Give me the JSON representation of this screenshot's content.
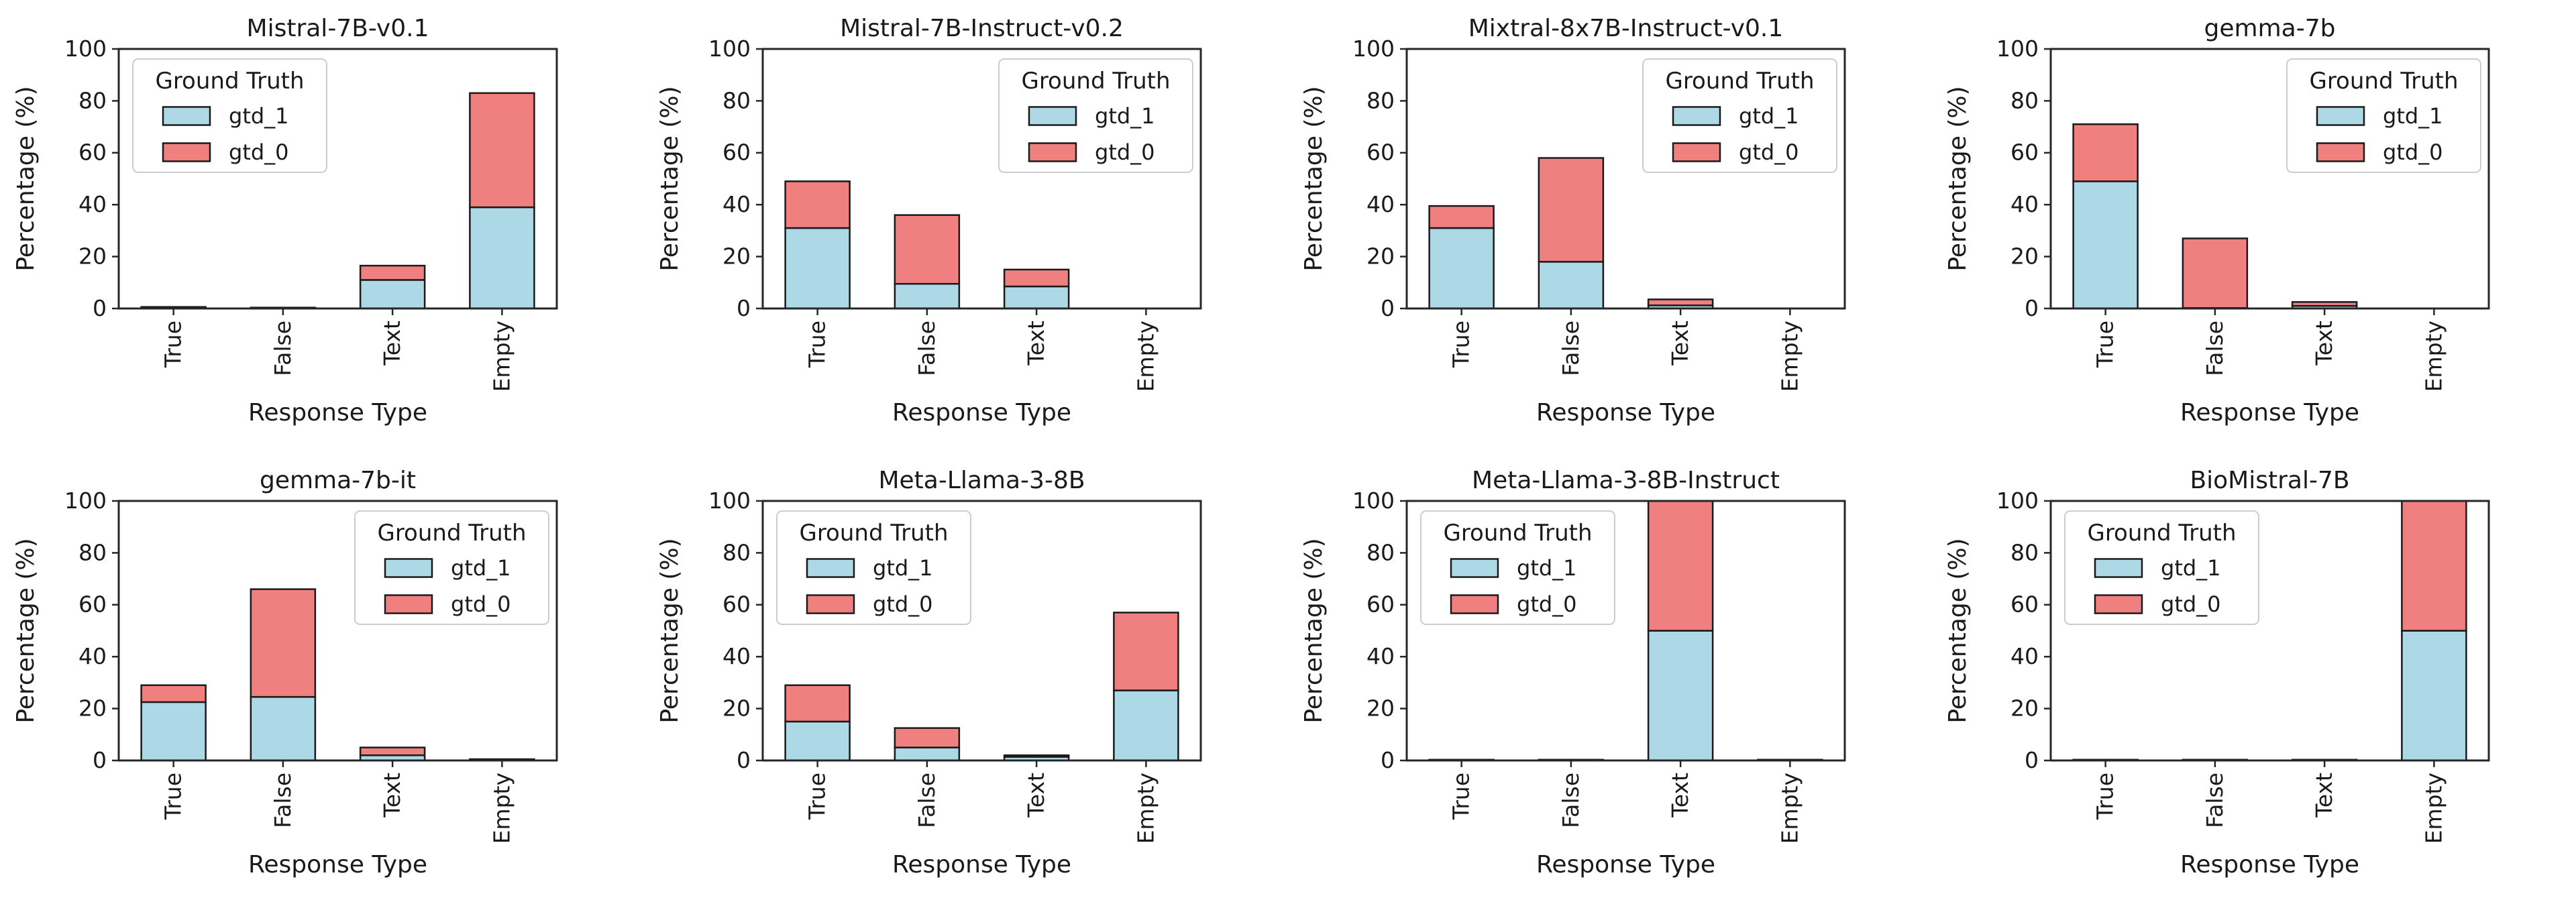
{
  "figure": {
    "background": "#ffffff",
    "ylabel": "Percentage (%)",
    "xlabel": "Response Type",
    "categories": [
      "True",
      "False",
      "Text",
      "Empty"
    ],
    "y_ticks": [
      "0",
      "20",
      "40",
      "60",
      "80",
      "100"
    ],
    "ylim": [
      0,
      100
    ],
    "legend": {
      "title": "Ground Truth",
      "entries": [
        {
          "label": "gtd_1",
          "color": "#ADD8E6"
        },
        {
          "label": "gtd_0",
          "color": "#F08080"
        }
      ]
    },
    "colors": {
      "gtd_1": "#ADD8E6",
      "gtd_0": "#F08080",
      "bar_edge": "#1a1a1a",
      "spine": "#262626",
      "text": "#1a1a1a",
      "legend_border": "#cccccc",
      "legend_bg": "#ffffff"
    }
  },
  "chart_data": [
    {
      "type": "bar",
      "stacked": true,
      "title": "Mistral-7B-v0.1",
      "xlabel": "Response Type",
      "ylabel": "Percentage (%)",
      "ylim": [
        0,
        100
      ],
      "legend_position": "upper-left",
      "categories": [
        "True",
        "False",
        "Text",
        "Empty"
      ],
      "series": [
        {
          "name": "gtd_1",
          "values": [
            0.4,
            0.2,
            11,
            39
          ]
        },
        {
          "name": "gtd_0",
          "values": [
            0.2,
            0.15,
            5.5,
            44
          ]
        }
      ]
    },
    {
      "type": "bar",
      "stacked": true,
      "title": "Mistral-7B-Instruct-v0.2",
      "xlabel": "Response Type",
      "ylabel": "Percentage (%)",
      "ylim": [
        0,
        100
      ],
      "legend_position": "upper-right",
      "categories": [
        "True",
        "False",
        "Text",
        "Empty"
      ],
      "series": [
        {
          "name": "gtd_1",
          "values": [
            31,
            9.5,
            8.5,
            0
          ]
        },
        {
          "name": "gtd_0",
          "values": [
            18,
            26.5,
            6.5,
            0
          ]
        }
      ]
    },
    {
      "type": "bar",
      "stacked": true,
      "title": "Mixtral-8x7B-Instruct-v0.1",
      "xlabel": "Response Type",
      "ylabel": "Percentage (%)",
      "ylim": [
        0,
        100
      ],
      "legend_position": "upper-right",
      "categories": [
        "True",
        "False",
        "Text",
        "Empty"
      ],
      "series": [
        {
          "name": "gtd_1",
          "values": [
            31,
            18,
            1.2,
            0
          ]
        },
        {
          "name": "gtd_0",
          "values": [
            8.5,
            40,
            2.3,
            0
          ]
        }
      ]
    },
    {
      "type": "bar",
      "stacked": true,
      "title": "gemma-7b",
      "xlabel": "Response Type",
      "ylabel": "Percentage (%)",
      "ylim": [
        0,
        100
      ],
      "legend_position": "upper-right",
      "categories": [
        "True",
        "False",
        "Text",
        "Empty"
      ],
      "series": [
        {
          "name": "gtd_1",
          "values": [
            49,
            0.2,
            1,
            0
          ]
        },
        {
          "name": "gtd_0",
          "values": [
            22,
            26.8,
            1.5,
            0
          ]
        }
      ]
    },
    {
      "type": "bar",
      "stacked": true,
      "title": "gemma-7b-it",
      "xlabel": "Response Type",
      "ylabel": "Percentage (%)",
      "ylim": [
        0,
        100
      ],
      "legend_position": "upper-right",
      "categories": [
        "True",
        "False",
        "Text",
        "Empty"
      ],
      "series": [
        {
          "name": "gtd_1",
          "values": [
            22.5,
            24.5,
            2,
            0.3
          ]
        },
        {
          "name": "gtd_0",
          "values": [
            6.5,
            41.5,
            3,
            0.2
          ]
        }
      ]
    },
    {
      "type": "bar",
      "stacked": true,
      "title": "Meta-Llama-3-8B",
      "xlabel": "Response Type",
      "ylabel": "Percentage (%)",
      "ylim": [
        0,
        100
      ],
      "legend_position": "upper-left",
      "categories": [
        "True",
        "False",
        "Text",
        "Empty"
      ],
      "series": [
        {
          "name": "gtd_1",
          "values": [
            15,
            5,
            1.4,
            27
          ]
        },
        {
          "name": "gtd_0",
          "values": [
            14,
            7.5,
            0.6,
            30
          ]
        }
      ]
    },
    {
      "type": "bar",
      "stacked": true,
      "title": "Meta-Llama-3-8B-Instruct",
      "xlabel": "Response Type",
      "ylabel": "Percentage (%)",
      "ylim": [
        0,
        100
      ],
      "legend_position": "upper-left",
      "categories": [
        "True",
        "False",
        "Text",
        "Empty"
      ],
      "series": [
        {
          "name": "gtd_1",
          "values": [
            0.15,
            0.15,
            50,
            0.15
          ]
        },
        {
          "name": "gtd_0",
          "values": [
            0.15,
            0.15,
            50,
            0.15
          ]
        }
      ]
    },
    {
      "type": "bar",
      "stacked": true,
      "title": "BioMistral-7B",
      "xlabel": "Response Type",
      "ylabel": "Percentage (%)",
      "ylim": [
        0,
        100
      ],
      "legend_position": "upper-left",
      "categories": [
        "True",
        "False",
        "Text",
        "Empty"
      ],
      "series": [
        {
          "name": "gtd_1",
          "values": [
            0.15,
            0.15,
            0.15,
            50
          ]
        },
        {
          "name": "gtd_0",
          "values": [
            0.15,
            0.15,
            0.15,
            50
          ]
        }
      ]
    }
  ]
}
